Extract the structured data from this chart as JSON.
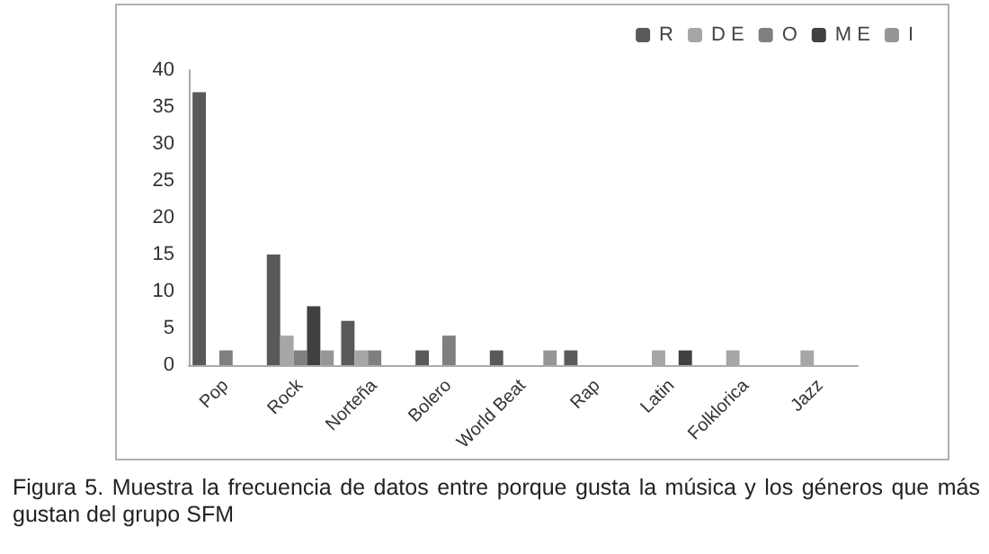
{
  "chart_data": {
    "type": "bar",
    "categories": [
      "Pop",
      "Rock",
      "Norteña",
      "Bolero",
      "World Beat",
      "Rap",
      "Latin",
      "Folklorica",
      "Jazz"
    ],
    "series": [
      {
        "name": "R",
        "color": "#595959",
        "values": [
          37,
          15,
          6,
          2,
          2,
          2,
          0,
          0,
          0
        ]
      },
      {
        "name": "D E",
        "color": "#a6a6a6",
        "values": [
          0,
          4,
          2,
          0,
          0,
          0,
          2,
          2,
          2
        ]
      },
      {
        "name": "O",
        "color": "#7f7f7f",
        "values": [
          2,
          2,
          2,
          4,
          0,
          0,
          0,
          0,
          0
        ]
      },
      {
        "name": "M E",
        "color": "#404040",
        "values": [
          0,
          8,
          0,
          0,
          0,
          0,
          2,
          0,
          0
        ]
      },
      {
        "name": "I",
        "color": "#969696",
        "values": [
          0,
          2,
          0,
          0,
          2,
          0,
          0,
          0,
          0
        ]
      }
    ],
    "ylim": [
      0,
      40
    ],
    "yticks": [
      0,
      5,
      10,
      15,
      20,
      25,
      30,
      35,
      40
    ],
    "grid": false,
    "legend": "top right",
    "annotations": [
      "Figura 5. Muestra la frecuencia de datos entre  porque gusta la música y los géneros que más gustan del grupo SFM"
    ]
  }
}
